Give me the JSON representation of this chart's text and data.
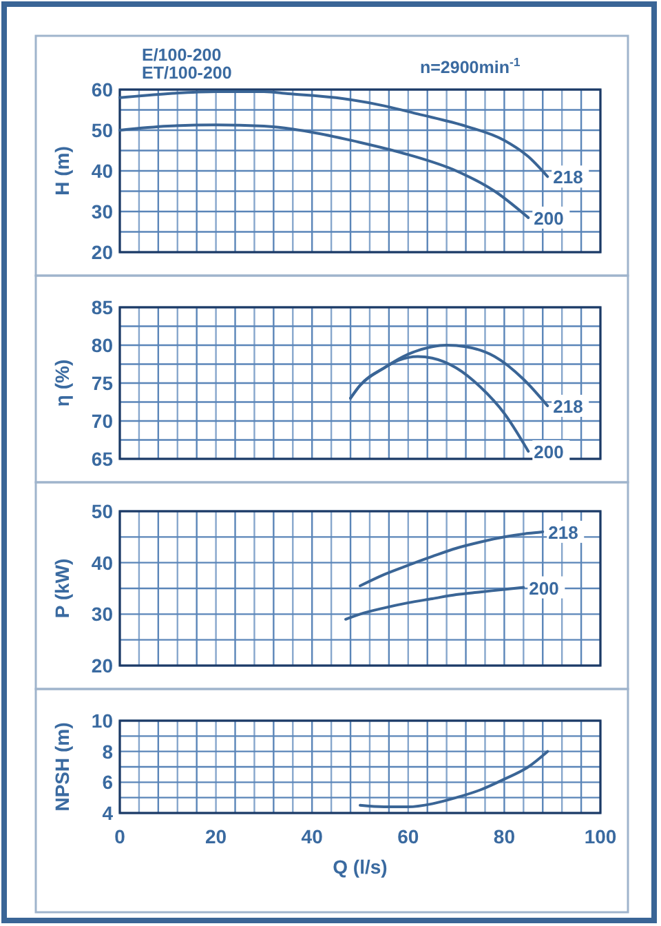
{
  "chart_data": [
    {
      "type": "line",
      "ylabel": "H (m)",
      "annotations": [
        "E/100-200",
        "ET/100-200",
        "n=2900min$^{-1}$"
      ],
      "xlim": [
        0,
        100
      ],
      "xticks": [
        0,
        {
          "value": 4,
          "label": null
        },
        {
          "value": 8,
          "label": null
        },
        {
          "value": 12,
          "label": null
        },
        {
          "value": 16,
          "label": null
        },
        20,
        {
          "value": 24,
          "label": null
        },
        {
          "value": 28,
          "label": null
        },
        {
          "value": 32,
          "label": null
        },
        {
          "value": 36,
          "label": null
        },
        40,
        {
          "value": 44,
          "label": null
        },
        {
          "value": 48,
          "label": null
        },
        {
          "value": 52,
          "label": null
        },
        {
          "value": 56,
          "label": null
        },
        60,
        {
          "value": 64,
          "label": null
        },
        {
          "value": 68,
          "label": null
        },
        {
          "value": 72,
          "label": null
        },
        {
          "value": 76,
          "label": null
        },
        80,
        {
          "value": 84,
          "label": null
        },
        {
          "value": 88,
          "label": null
        },
        {
          "value": 92,
          "label": null
        },
        {
          "value": 96,
          "label": null
        },
        100
      ],
      "ylim": [
        20,
        60
      ],
      "yticks": [
        20,
        {
          "value": 25,
          "label": null
        },
        30,
        {
          "value": 35,
          "label": null
        },
        40,
        {
          "value": 45,
          "label": null
        },
        50,
        {
          "value": 55,
          "label": null
        },
        60
      ],
      "grid": true,
      "tick_labels": "y",
      "series": [
        {
          "name": "218",
          "color": "#3a6596",
          "x": [
            0,
            10,
            20,
            30,
            35,
            45,
            55,
            62,
            72,
            80,
            85,
            89
          ],
          "values": [
            58,
            59,
            59.5,
            59.5,
            59,
            58,
            56,
            54,
            51,
            47.5,
            43.5,
            38.6
          ]
        },
        {
          "name": "200",
          "color": "#3a6596",
          "x": [
            0,
            10,
            20,
            30,
            40,
            50,
            60,
            70,
            78,
            85
          ],
          "values": [
            50,
            51,
            51.3,
            51,
            49.5,
            47,
            44,
            40,
            35,
            28.5
          ]
        }
      ]
    },
    {
      "type": "line",
      "ylabel": "η (%)",
      "xlim": [
        0,
        100
      ],
      "xticks": [
        0,
        {
          "value": 4,
          "label": null
        },
        {
          "value": 8,
          "label": null
        },
        {
          "value": 12,
          "label": null
        },
        {
          "value": 16,
          "label": null
        },
        20,
        {
          "value": 24,
          "label": null
        },
        {
          "value": 28,
          "label": null
        },
        {
          "value": 32,
          "label": null
        },
        {
          "value": 36,
          "label": null
        },
        40,
        {
          "value": 44,
          "label": null
        },
        {
          "value": 48,
          "label": null
        },
        {
          "value": 52,
          "label": null
        },
        {
          "value": 56,
          "label": null
        },
        60,
        {
          "value": 64,
          "label": null
        },
        {
          "value": 68,
          "label": null
        },
        {
          "value": 72,
          "label": null
        },
        {
          "value": 76,
          "label": null
        },
        80,
        {
          "value": 84,
          "label": null
        },
        {
          "value": 88,
          "label": null
        },
        {
          "value": 92,
          "label": null
        },
        {
          "value": 96,
          "label": null
        },
        100
      ],
      "ylim": [
        65,
        85
      ],
      "yticks": [
        65,
        {
          "value": 67.5,
          "label": null
        },
        70,
        {
          "value": 72.5,
          "label": null
        },
        75,
        {
          "value": 77.5,
          "label": null
        },
        80,
        {
          "value": 82.5,
          "label": null
        },
        85
      ],
      "grid": true,
      "tick_labels": "y",
      "series": [
        {
          "name": "218",
          "color": "#3a6596",
          "x": [
            48,
            50,
            55,
            60,
            65,
            68,
            72,
            78,
            84,
            89
          ],
          "values": [
            73,
            74.7,
            77,
            78.8,
            79.8,
            80,
            79.8,
            78.5,
            75.5,
            72
          ]
        },
        {
          "name": "200",
          "color": "#3a6596",
          "x": [
            48,
            50,
            55,
            58,
            62,
            65,
            70,
            75,
            80,
            85
          ],
          "values": [
            73,
            74.7,
            77,
            78,
            78.5,
            78.3,
            77,
            74.5,
            71,
            66
          ]
        }
      ]
    },
    {
      "type": "line",
      "ylabel": "P (kW)",
      "xlim": [
        0,
        100
      ],
      "xticks": [
        0,
        {
          "value": 4,
          "label": null
        },
        {
          "value": 8,
          "label": null
        },
        {
          "value": 12,
          "label": null
        },
        {
          "value": 16,
          "label": null
        },
        20,
        {
          "value": 24,
          "label": null
        },
        {
          "value": 28,
          "label": null
        },
        {
          "value": 32,
          "label": null
        },
        {
          "value": 36,
          "label": null
        },
        40,
        {
          "value": 44,
          "label": null
        },
        {
          "value": 48,
          "label": null
        },
        {
          "value": 52,
          "label": null
        },
        {
          "value": 56,
          "label": null
        },
        60,
        {
          "value": 64,
          "label": null
        },
        {
          "value": 68,
          "label": null
        },
        {
          "value": 72,
          "label": null
        },
        {
          "value": 76,
          "label": null
        },
        80,
        {
          "value": 84,
          "label": null
        },
        {
          "value": 88,
          "label": null
        },
        {
          "value": 92,
          "label": null
        },
        {
          "value": 96,
          "label": null
        },
        100
      ],
      "ylim": [
        20,
        50
      ],
      "yticks": [
        20,
        {
          "value": 25,
          "label": null
        },
        30,
        {
          "value": 35,
          "label": null
        },
        40,
        {
          "value": 45,
          "label": null
        },
        50
      ],
      "grid": true,
      "tick_labels": "y",
      "series": [
        {
          "name": "218",
          "color": "#3a6596",
          "x": [
            50,
            55,
            60,
            65,
            70,
            75,
            80,
            85,
            88
          ],
          "values": [
            35.5,
            37.7,
            39.5,
            41.2,
            42.8,
            44,
            45,
            45.7,
            46
          ]
        },
        {
          "name": "200",
          "color": "#3a6596",
          "x": [
            47,
            50,
            55,
            60,
            65,
            70,
            75,
            80,
            84
          ],
          "values": [
            29,
            30,
            31.2,
            32.2,
            33,
            33.8,
            34.3,
            34.8,
            35.2
          ]
        }
      ]
    },
    {
      "type": "line",
      "ylabel": "NPSH (m)",
      "xlabel": "Q (l/s)",
      "xlim": [
        0,
        100
      ],
      "xticks": [
        0,
        {
          "value": 4,
          "label": null
        },
        {
          "value": 8,
          "label": null
        },
        {
          "value": 12,
          "label": null
        },
        {
          "value": 16,
          "label": null
        },
        20,
        {
          "value": 24,
          "label": null
        },
        {
          "value": 28,
          "label": null
        },
        {
          "value": 32,
          "label": null
        },
        {
          "value": 36,
          "label": null
        },
        40,
        {
          "value": 44,
          "label": null
        },
        {
          "value": 48,
          "label": null
        },
        {
          "value": 52,
          "label": null
        },
        {
          "value": 56,
          "label": null
        },
        60,
        {
          "value": 64,
          "label": null
        },
        {
          "value": 68,
          "label": null
        },
        {
          "value": 72,
          "label": null
        },
        {
          "value": 76,
          "label": null
        },
        80,
        {
          "value": 84,
          "label": null
        },
        {
          "value": 88,
          "label": null
        },
        {
          "value": 92,
          "label": null
        },
        {
          "value": 96,
          "label": null
        },
        100
      ],
      "ylim": [
        4,
        10
      ],
      "yticks": [
        4,
        {
          "value": 5,
          "label": null
        },
        6,
        {
          "value": 7,
          "label": null
        },
        8,
        {
          "value": 9,
          "label": null
        },
        10
      ],
      "grid": true,
      "series": [
        {
          "color": "#3a6596",
          "x": [
            50,
            55,
            60,
            65,
            70,
            75,
            80,
            85,
            89
          ],
          "values": [
            4.5,
            4.4,
            4.4,
            4.6,
            5,
            5.5,
            6.2,
            7,
            8
          ]
        }
      ]
    }
  ]
}
